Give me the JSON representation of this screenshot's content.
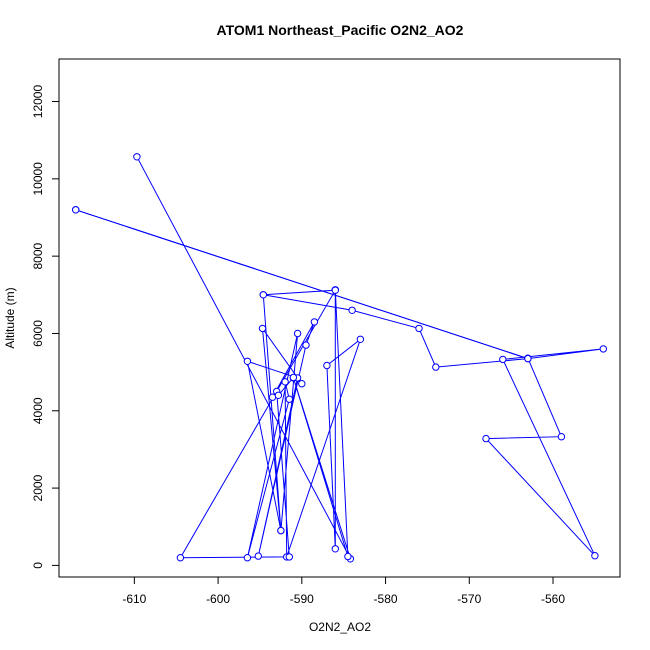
{
  "chart_data": {
    "type": "line",
    "title": "ATOM1 Northeast_Pacific O2N2_AO2",
    "xlabel": "O2N2_AO2",
    "ylabel": "Altitude (m)",
    "xlim": [
      -619.0,
      -552.0
    ],
    "ylim": [
      -300,
      13100
    ],
    "x_ticks": [
      -610,
      -600,
      -590,
      -580,
      -570,
      -560
    ],
    "y_ticks": [
      0,
      2000,
      4000,
      6000,
      8000,
      10000,
      12000
    ],
    "grid": false,
    "legend": "none",
    "series": [
      {
        "color": "#0000ff",
        "marker": "open-circle",
        "points": [
          {
            "x": -617.0,
            "y": 9200
          },
          {
            "x": -563.0,
            "y": 5350
          },
          {
            "x": -554.0,
            "y": 5600
          },
          {
            "x": -566.0,
            "y": 5330
          },
          {
            "x": -555.0,
            "y": 250
          },
          {
            "x": -568.0,
            "y": 3280
          },
          {
            "x": -559.0,
            "y": 3330
          },
          {
            "x": -563.0,
            "y": 5360
          }
        ]
      },
      {
        "color": "#0000ff",
        "marker": "open-circle",
        "points": [
          {
            "x": -609.7,
            "y": 10570
          },
          {
            "x": -584.2,
            "y": 170
          },
          {
            "x": -591.0,
            "y": 4850
          },
          {
            "x": -584.5,
            "y": 230
          },
          {
            "x": -586.0,
            "y": 7130
          },
          {
            "x": -586.0,
            "y": 430
          },
          {
            "x": -587.0,
            "y": 5170
          },
          {
            "x": -583.0,
            "y": 5850
          },
          {
            "x": -591.8,
            "y": 220
          },
          {
            "x": -592.0,
            "y": 4750
          },
          {
            "x": -591.5,
            "y": 4300
          },
          {
            "x": -596.5,
            "y": 200
          },
          {
            "x": -590.5,
            "y": 6000
          },
          {
            "x": -592.5,
            "y": 900
          },
          {
            "x": -596.5,
            "y": 5280
          },
          {
            "x": -590.5,
            "y": 4850
          },
          {
            "x": -595.2,
            "y": 240
          },
          {
            "x": -589.5,
            "y": 5700
          },
          {
            "x": -588.5,
            "y": 6300
          },
          {
            "x": -593.5,
            "y": 4350
          },
          {
            "x": -593.0,
            "y": 4500
          },
          {
            "x": -591.5,
            "y": 220
          },
          {
            "x": -604.5,
            "y": 200
          },
          {
            "x": -586.0,
            "y": 7120
          },
          {
            "x": -594.6,
            "y": 7000
          },
          {
            "x": -584.0,
            "y": 6600
          },
          {
            "x": -576.0,
            "y": 6130
          },
          {
            "x": -574.0,
            "y": 5130
          },
          {
            "x": -563.0,
            "y": 5350
          },
          {
            "x": -617.0,
            "y": 9200
          }
        ]
      },
      {
        "color": "#0000ff",
        "marker": "open-circle",
        "points": [
          {
            "x": -594.6,
            "y": 7000
          },
          {
            "x": -592.5,
            "y": 900
          },
          {
            "x": -594.7,
            "y": 6130
          },
          {
            "x": -590.0,
            "y": 4700
          },
          {
            "x": -591.0,
            "y": 4860
          },
          {
            "x": -592.8,
            "y": 4400
          }
        ]
      }
    ]
  }
}
